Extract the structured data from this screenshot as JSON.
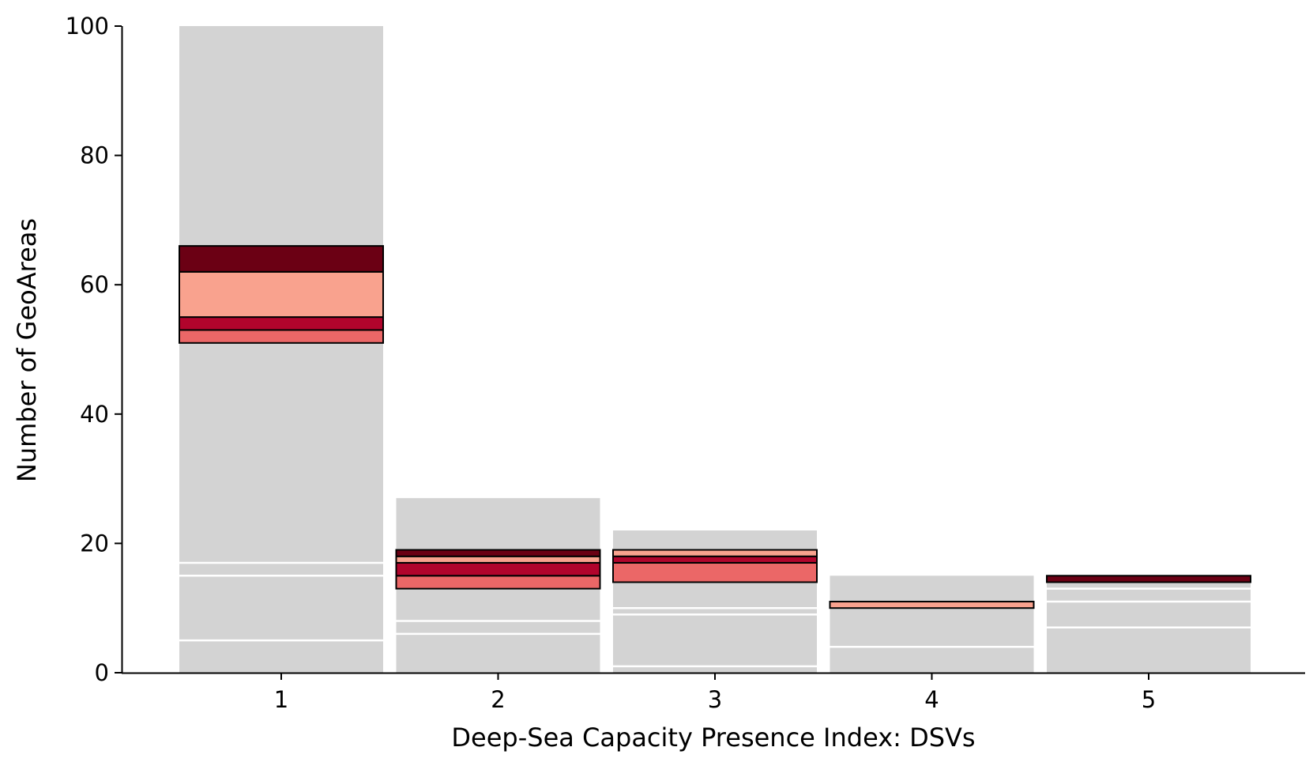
{
  "chart_data": {
    "type": "bar",
    "title": "",
    "xlabel": "Deep-Sea Capacity Presence Index: DSVs",
    "ylabel": "Number of GeoAreas",
    "categories": [
      "1",
      "2",
      "3",
      "4",
      "5"
    ],
    "ylim": [
      0,
      100
    ],
    "yticks": [
      0,
      20,
      40,
      60,
      80,
      100
    ],
    "grid": false,
    "legend": "none",
    "background_color": "#d3d3d3",
    "divider_color": "#ffffff",
    "highlight_outline_color": "#000000",
    "totals": [
      100,
      27,
      22,
      15,
      15
    ],
    "gray_dividers": [
      [
        5,
        15,
        17
      ],
      [
        6,
        8
      ],
      [
        1,
        9,
        10
      ],
      [
        4
      ],
      [
        7,
        11,
        13
      ]
    ],
    "highlighted_segments": [
      [
        {
          "from": 51,
          "to": 53,
          "color": "#eb6767"
        },
        {
          "from": 53,
          "to": 55,
          "color": "#b1042c"
        },
        {
          "from": 55,
          "to": 62,
          "color": "#f9a28e"
        },
        {
          "from": 62,
          "to": 66,
          "color": "#6b0014"
        }
      ],
      [
        {
          "from": 13,
          "to": 15,
          "color": "#eb6767"
        },
        {
          "from": 15,
          "to": 17,
          "color": "#b1042c"
        },
        {
          "from": 17,
          "to": 18,
          "color": "#f9a28e"
        },
        {
          "from": 18,
          "to": 19,
          "color": "#6b0014"
        }
      ],
      [
        {
          "from": 14,
          "to": 17,
          "color": "#eb6767"
        },
        {
          "from": 17,
          "to": 18,
          "color": "#b1042c"
        },
        {
          "from": 18,
          "to": 19,
          "color": "#f9a28e"
        }
      ],
      [
        {
          "from": 10,
          "to": 11,
          "color": "#f9a28e"
        }
      ],
      [
        {
          "from": 14,
          "to": 15,
          "color": "#6b0014"
        }
      ]
    ]
  }
}
